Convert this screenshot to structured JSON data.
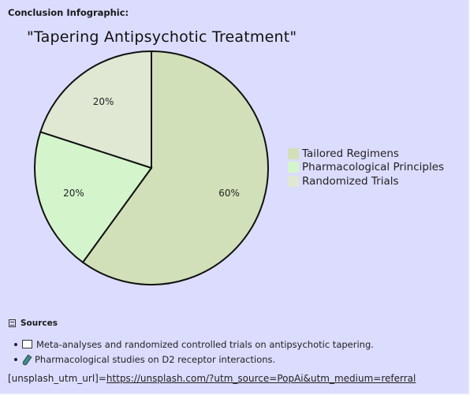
{
  "header": {
    "title": "Conclusion Infographic:"
  },
  "chart_data": {
    "type": "pie",
    "title": "\"Tapering Antipsychotic Treatment\"",
    "categories": [
      "Tailored Regimens",
      "Pharmacological Principles",
      "Randomized Trials"
    ],
    "values": [
      60,
      20,
      20
    ],
    "data_labels": [
      "60%",
      "20%",
      "20%"
    ],
    "colors": [
      "#d1e0b8",
      "#d4f5cc",
      "#e0e8d4"
    ],
    "legend_position": "right",
    "start_angle": "top, clockwise"
  },
  "sources": {
    "title": "Sources",
    "icon": "document-icon",
    "items": [
      {
        "icon": "book-icon",
        "text": "Meta-analyses and randomized controlled trials on antipsychotic tapering."
      },
      {
        "icon": "test-tube-icon",
        "text": "Pharmacological studies on D2 receptor interactions."
      }
    ]
  },
  "footer": {
    "prefix": "[unsplash_utm_url]=",
    "url": "https://unsplash.com/?utm_source=PopAi&utm_medium=referral"
  }
}
